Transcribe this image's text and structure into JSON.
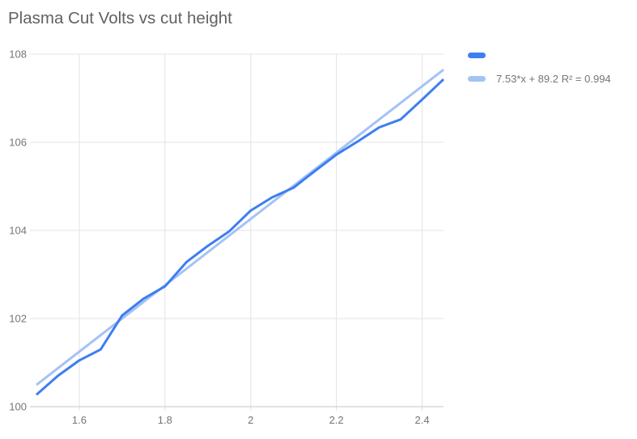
{
  "chart_data": {
    "type": "line",
    "title": "Plasma Cut Volts vs cut height",
    "xlabel": "",
    "ylabel": "",
    "xlim": [
      1.5,
      2.45
    ],
    "ylim": [
      100,
      108
    ],
    "x_ticks": [
      1.6,
      1.8,
      2,
      2.2,
      2.4
    ],
    "y_ticks": [
      100,
      102,
      104,
      106,
      108
    ],
    "grid": true,
    "legend_position": "right",
    "x": [
      1.5,
      1.55,
      1.6,
      1.65,
      1.7,
      1.75,
      1.8,
      1.85,
      1.9,
      1.95,
      2.0,
      2.05,
      2.1,
      2.15,
      2.2,
      2.25,
      2.3,
      2.35,
      2.4,
      2.45
    ],
    "series": [
      {
        "name": "",
        "color": "#3d7ef0",
        "values": [
          100.27,
          100.7,
          101.05,
          101.3,
          102.07,
          102.45,
          102.73,
          103.28,
          103.65,
          103.98,
          104.45,
          104.75,
          104.97,
          105.35,
          105.72,
          106.02,
          106.34,
          106.52,
          106.97,
          107.43
        ]
      }
    ],
    "trendline": {
      "label": "7.53*x + 89.2 R² = 0.994",
      "slope": 7.53,
      "intercept": 89.2,
      "r2": 0.994,
      "color": "#a4c2f4"
    },
    "grid_color": "#e3e3e3",
    "axis_color": "#c4c4c4",
    "tick_label_color": "#757575",
    "title_color": "#616161"
  },
  "legend": {
    "series_label": "",
    "trendline_label": "7.53*x + 89.2 R² = 0.994"
  }
}
